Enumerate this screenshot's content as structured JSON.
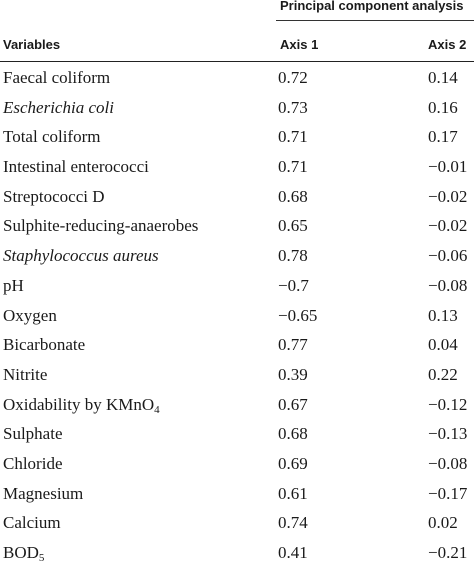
{
  "table": {
    "group_header": "Principal component analysis",
    "columns": {
      "variables": "Variables",
      "axis1": "Axis 1",
      "axis2": "Axis 2"
    },
    "rows": [
      {
        "variable": "Faecal coliform",
        "axis1": "0.72",
        "axis2": "0.14"
      },
      {
        "variable": "Escherichia coli",
        "italic": true,
        "axis1": "0.73",
        "axis2": "0.16"
      },
      {
        "variable": "Total coliform",
        "axis1": "0.71",
        "axis2": "0.17"
      },
      {
        "variable": "Intestinal enterococci",
        "axis1": "0.71",
        "axis2": "−0.01"
      },
      {
        "variable": "Streptococci D",
        "axis1": "0.68",
        "axis2": "−0.02"
      },
      {
        "variable": "Sulphite-reducing-anaerobes",
        "axis1": "0.65",
        "axis2": "−0.02"
      },
      {
        "variable": "Staphylococcus aureus",
        "italic": true,
        "axis1": "0.78",
        "axis2": "−0.06"
      },
      {
        "variable": "pH",
        "axis1": "−0.7",
        "axis2": "−0.08"
      },
      {
        "variable": "Oxygen",
        "axis1": "−0.65",
        "axis2": "0.13"
      },
      {
        "variable": "Bicarbonate",
        "axis1": "0.77",
        "axis2": "0.04"
      },
      {
        "variable": "Nitrite",
        "axis1": "0.39",
        "axis2": "0.22"
      },
      {
        "variable": "Oxidability by KMnO",
        "subscript": "4",
        "axis1": "0.67",
        "axis2": "−0.12"
      },
      {
        "variable": "Sulphate",
        "axis1": "0.68",
        "axis2": "−0.13"
      },
      {
        "variable": "Chloride",
        "axis1": "0.69",
        "axis2": "−0.08"
      },
      {
        "variable": "Magnesium",
        "axis1": "0.61",
        "axis2": "−0.17"
      },
      {
        "variable": "Calcium",
        "axis1": "0.74",
        "axis2": "0.02"
      },
      {
        "variable": "BOD",
        "subscript": "5",
        "axis1": "0.41",
        "axis2": "−0.21"
      }
    ]
  }
}
